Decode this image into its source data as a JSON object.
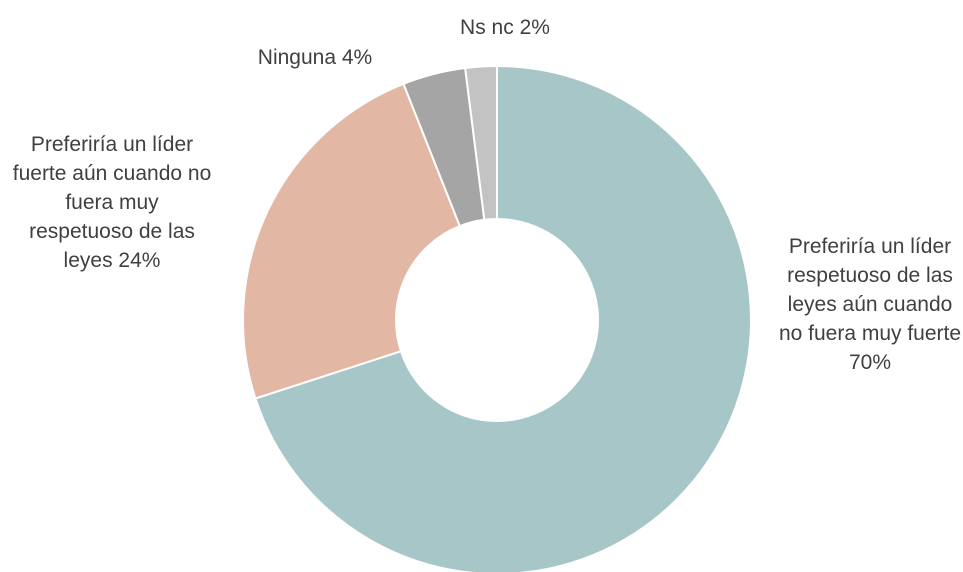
{
  "chart_data": {
    "type": "donut",
    "categories": [
      "Preferiría un líder respetuoso de las leyes aún cuando no fuera muy fuerte",
      "Preferiría un líder fuerte aún cuando no fuera muy respetuoso de las leyes",
      "Ninguna",
      "Ns nc"
    ],
    "values": [
      70,
      24,
      4,
      2
    ],
    "value_labels": [
      "70%",
      "24%",
      "4%",
      "2%"
    ],
    "colors": [
      "#a7c6c8",
      "#e2b8a5",
      "#a5a5a5",
      "#c3c3c3"
    ]
  }
}
